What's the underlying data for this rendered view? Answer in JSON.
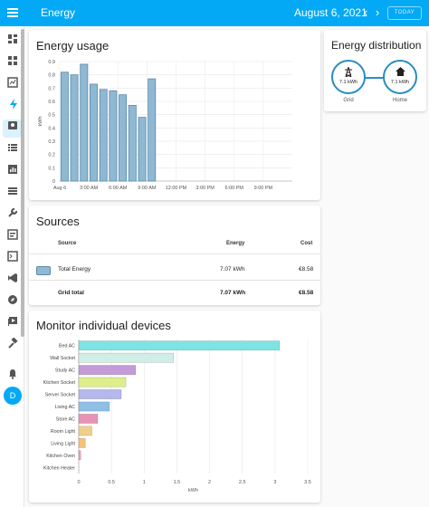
{
  "header": {
    "title": "Energy",
    "date": "August 6, 2021",
    "today_label": "TODAY",
    "menu_icon": "menu-icon",
    "prev_icon": "chevron-left-icon",
    "next_icon": "chevron-right-icon"
  },
  "sidebar": {
    "items": [
      "overview",
      "logbook",
      "map",
      "energy",
      "person",
      "history",
      "calendar",
      "media",
      "tools",
      "developer",
      "terminal",
      "vscode",
      "compass",
      "cast",
      "hammer"
    ],
    "notifications_icon": "bell-icon",
    "avatar_letter": "D"
  },
  "energy_usage": {
    "title": "Energy usage",
    "chart_data": {
      "type": "bar",
      "ylabel": "kWh",
      "ylim": [
        0,
        0.9
      ],
      "y_ticks": [
        "0",
        "0.1",
        "0.2",
        "0.3",
        "0.4",
        "0.5",
        "0.6",
        "0.7",
        "0.8",
        "0.9"
      ],
      "x_ticks": [
        "Aug 6",
        "3:00 AM",
        "6:00 AM",
        "9:00 AM",
        "12:00 PM",
        "3:00 PM",
        "6:00 PM",
        "9:00 PM"
      ],
      "hours": [
        0,
        1,
        2,
        3,
        4,
        5,
        6,
        7,
        8,
        9
      ],
      "values": [
        0.82,
        0.8,
        0.88,
        0.73,
        0.69,
        0.68,
        0.65,
        0.57,
        0.48,
        0.77
      ],
      "color": "#8fb8d3",
      "border": "#5a8aab"
    }
  },
  "sources": {
    "title": "Sources",
    "headers": {
      "source": "Source",
      "energy": "Energy",
      "cost": "Cost"
    },
    "rows": [
      {
        "name": "Total Energy",
        "energy": "7.07 kWh",
        "cost": "€8.58"
      }
    ],
    "total": {
      "name": "Grid total",
      "energy": "7.07 kWh",
      "cost": "€8.58"
    }
  },
  "distribution": {
    "title": "Energy distribution",
    "grid": {
      "value": "7.1 kWh",
      "label": "Grid",
      "icon": "transmission-tower-icon"
    },
    "home": {
      "value": "7.1 kWh",
      "label": "Home",
      "icon": "home-icon"
    }
  },
  "devices": {
    "title": "Monitor individual devices",
    "chart_data": {
      "type": "bar",
      "orientation": "horizontal",
      "xlabel": "kWh",
      "xlim": [
        0,
        3.5
      ],
      "x_ticks": [
        "0",
        "0.5",
        "1",
        "1.5",
        "2",
        "2.5",
        "3",
        "3.5"
      ],
      "categories": [
        "Bed AC",
        "Wall Socket",
        "Study AC",
        "Kitchen Socket",
        "Server Socket",
        "Living AC",
        "Store AC",
        "Room Light",
        "Living Light",
        "Kitchen Oven",
        "Kitchen Heater"
      ],
      "values": [
        3.07,
        1.45,
        0.87,
        0.72,
        0.65,
        0.47,
        0.29,
        0.2,
        0.1,
        0.03,
        0.0
      ],
      "colors": [
        "#7ee3e3",
        "#cfeee6",
        "#c49bd8",
        "#dcef8a",
        "#b5b8ec",
        "#90bfe6",
        "#e893b5",
        "#f0cf8d",
        "#f5c27a",
        "#ee9fc7",
        "#cccccc"
      ]
    }
  }
}
